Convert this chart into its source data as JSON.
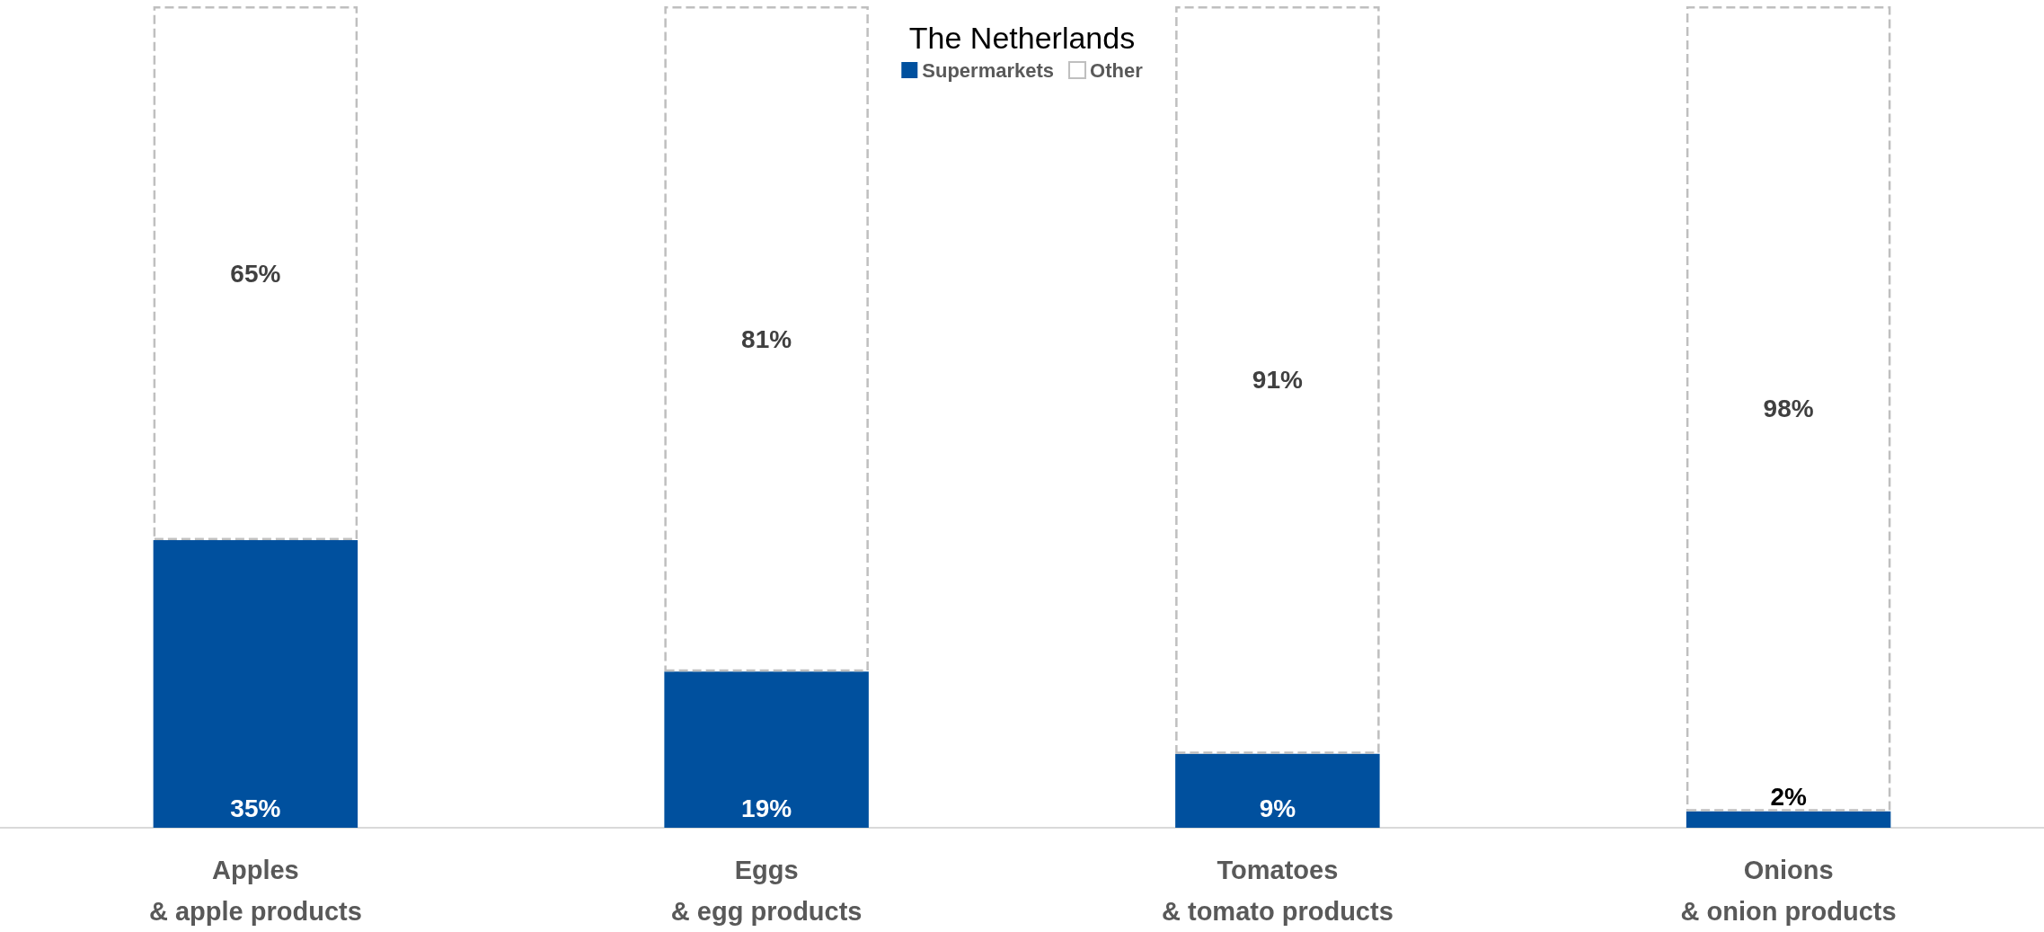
{
  "chart_data": {
    "type": "bar",
    "title": "The Netherlands",
    "categories": [
      "Apples\n& apple products",
      "Eggs\n& egg products",
      "Tomatoes\n& tomato products",
      "Onions\n& onion products"
    ],
    "stacked": true,
    "legend": "top",
    "series": [
      {
        "name": "Supermarkets",
        "color": "#00509e",
        "values": [
          35,
          19,
          9,
          2
        ],
        "value_labels": [
          "35%",
          "19%",
          "9%",
          "2%"
        ]
      },
      {
        "name": "Other",
        "color": "#ffffff",
        "line_style": "dashed",
        "values": [
          65,
          81,
          91,
          98
        ],
        "value_labels": [
          "65%",
          "81%",
          "91%",
          "98%"
        ]
      }
    ]
  }
}
